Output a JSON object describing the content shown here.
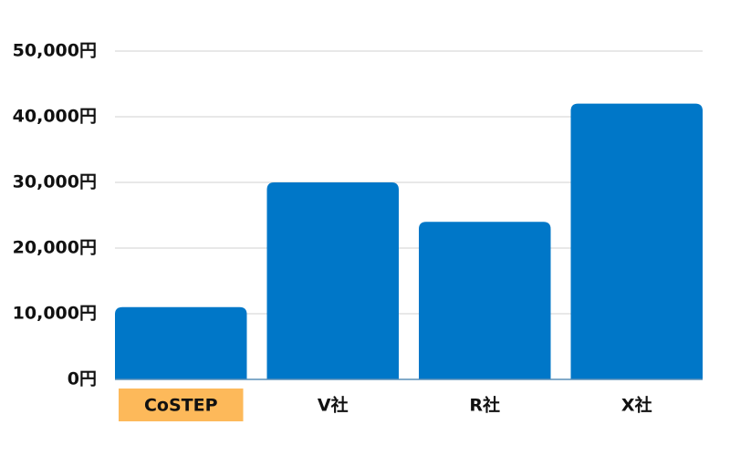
{
  "chart_data": {
    "type": "bar",
    "categories": [
      "CoSTEP",
      "V社",
      "R社",
      "X社"
    ],
    "values": [
      11000,
      30000,
      24000,
      42000
    ],
    "color": "#0077c8",
    "highlight": {
      "index": 0,
      "color": "#fdb95a"
    },
    "ylim": [
      0,
      50000
    ],
    "yticks": [
      {
        "value": 0,
        "label": "0円"
      },
      {
        "value": 10000,
        "label": "10,000円"
      },
      {
        "value": 20000,
        "label": "20,000円"
      },
      {
        "value": 30000,
        "label": "30,000円"
      },
      {
        "value": 40000,
        "label": "40,000円"
      },
      {
        "value": 50000,
        "label": "50,000円"
      }
    ],
    "grid": true
  }
}
